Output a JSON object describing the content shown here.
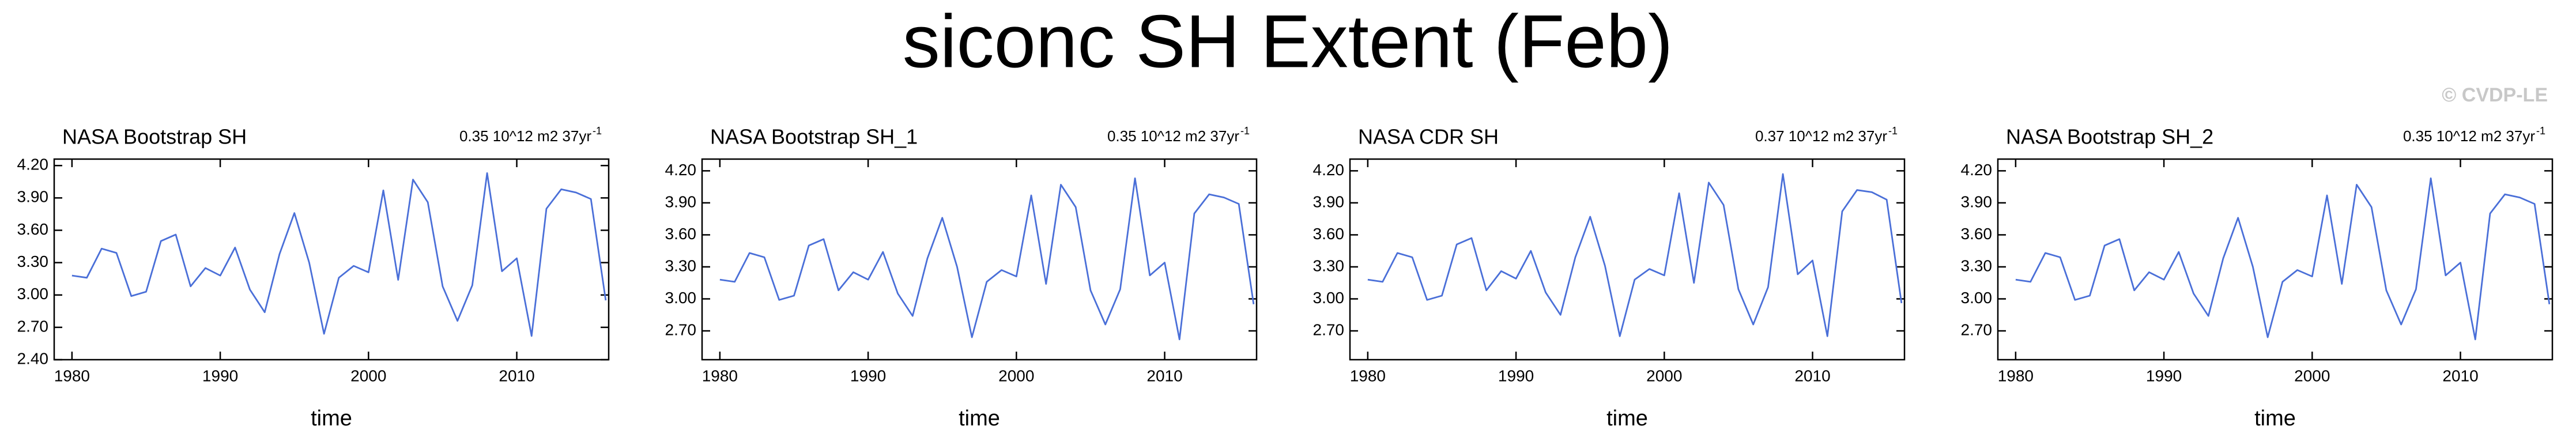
{
  "title": "siconc SH Extent (Feb)",
  "watermark": "© CVDP-LE",
  "chart_data": [
    {
      "type": "line",
      "title": "NASA Bootstrap SH",
      "trend": "0.35 10^12 m2 37yr",
      "trend_exponent": "-1",
      "x_label": "time",
      "x": [
        1980,
        1981,
        1982,
        1983,
        1984,
        1985,
        1986,
        1987,
        1988,
        1989,
        1990,
        1991,
        1992,
        1993,
        1994,
        1995,
        1996,
        1997,
        1998,
        1999,
        2000,
        2001,
        2002,
        2003,
        2004,
        2005,
        2006,
        2007,
        2008,
        2009,
        2010,
        2011,
        2012,
        2013,
        2014,
        2015,
        2016
      ],
      "series": [
        {
          "color": "#4a6fd8",
          "values": [
            3.18,
            3.16,
            3.43,
            3.39,
            2.99,
            3.03,
            3.5,
            3.56,
            3.08,
            3.25,
            3.18,
            3.44,
            3.05,
            2.84,
            3.38,
            3.76,
            3.3,
            2.64,
            3.16,
            3.27,
            3.21,
            3.97,
            3.14,
            4.07,
            3.86,
            3.08,
            2.76,
            3.09,
            4.13,
            3.22,
            3.34,
            2.62,
            3.8,
            3.98,
            3.95,
            3.89,
            2.95
          ]
        }
      ],
      "xlim": [
        1978.8,
        2016.2
      ],
      "xticks": [
        1980,
        1990,
        2000,
        2010
      ],
      "ylim": [
        2.4,
        4.26
      ],
      "yticks": [
        {
          "value": 2.4,
          "label": "2.40"
        },
        {
          "value": 2.7,
          "label": "2.70"
        },
        {
          "value": 3.0,
          "label": "3.00"
        },
        {
          "value": 3.3,
          "label": "3.30"
        },
        {
          "value": 3.6,
          "label": "3.60"
        },
        {
          "value": 3.9,
          "label": "3.90"
        },
        {
          "value": 4.2,
          "label": "4.20"
        }
      ]
    },
    {
      "type": "line",
      "title": "NASA Bootstrap SH_1",
      "trend": "0.35 10^12 m2 37yr",
      "trend_exponent": "-1",
      "x_label": "time",
      "x": [
        1980,
        1981,
        1982,
        1983,
        1984,
        1985,
        1986,
        1987,
        1988,
        1989,
        1990,
        1991,
        1992,
        1993,
        1994,
        1995,
        1996,
        1997,
        1998,
        1999,
        2000,
        2001,
        2002,
        2003,
        2004,
        2005,
        2006,
        2007,
        2008,
        2009,
        2010,
        2011,
        2012,
        2013,
        2014,
        2015,
        2016
      ],
      "series": [
        {
          "color": "#4a6fd8",
          "values": [
            3.18,
            3.16,
            3.43,
            3.39,
            2.99,
            3.03,
            3.5,
            3.56,
            3.08,
            3.25,
            3.18,
            3.44,
            3.05,
            2.84,
            3.38,
            3.76,
            3.3,
            2.64,
            3.16,
            3.27,
            3.21,
            3.97,
            3.14,
            4.07,
            3.86,
            3.08,
            2.76,
            3.09,
            4.13,
            3.22,
            3.34,
            2.62,
            3.8,
            3.98,
            3.95,
            3.89,
            2.95
          ]
        }
      ],
      "xlim": [
        1978.8,
        2016.2
      ],
      "xticks": [
        1980,
        1990,
        2000,
        2010
      ],
      "ylim": [
        2.43,
        4.31
      ],
      "yticks": [
        {
          "value": 2.7,
          "label": "2.70"
        },
        {
          "value": 3.0,
          "label": "3.00"
        },
        {
          "value": 3.3,
          "label": "3.30"
        },
        {
          "value": 3.6,
          "label": "3.60"
        },
        {
          "value": 3.9,
          "label": "3.90"
        },
        {
          "value": 4.2,
          "label": "4.20"
        }
      ]
    },
    {
      "type": "line",
      "title": "NASA CDR SH",
      "trend": "0.37 10^12 m2 37yr",
      "trend_exponent": "-1",
      "x_label": "time",
      "x": [
        1980,
        1981,
        1982,
        1983,
        1984,
        1985,
        1986,
        1987,
        1988,
        1989,
        1990,
        1991,
        1992,
        1993,
        1994,
        1995,
        1996,
        1997,
        1998,
        1999,
        2000,
        2001,
        2002,
        2003,
        2004,
        2005,
        2006,
        2007,
        2008,
        2009,
        2010,
        2011,
        2012,
        2013,
        2014,
        2015,
        2016
      ],
      "series": [
        {
          "color": "#4a6fd8",
          "values": [
            3.18,
            3.16,
            3.43,
            3.39,
            2.99,
            3.03,
            3.51,
            3.57,
            3.08,
            3.26,
            3.19,
            3.45,
            3.06,
            2.85,
            3.39,
            3.77,
            3.31,
            2.65,
            3.18,
            3.28,
            3.22,
            3.99,
            3.15,
            4.09,
            3.88,
            3.09,
            2.76,
            3.11,
            4.17,
            3.23,
            3.36,
            2.65,
            3.82,
            4.02,
            4.0,
            3.93,
            2.96
          ]
        }
      ],
      "xlim": [
        1978.8,
        2016.2
      ],
      "xticks": [
        1980,
        1990,
        2000,
        2010
      ],
      "ylim": [
        2.43,
        4.31
      ],
      "yticks": [
        {
          "value": 2.7,
          "label": "2.70"
        },
        {
          "value": 3.0,
          "label": "3.00"
        },
        {
          "value": 3.3,
          "label": "3.30"
        },
        {
          "value": 3.6,
          "label": "3.60"
        },
        {
          "value": 3.9,
          "label": "3.90"
        },
        {
          "value": 4.2,
          "label": "4.20"
        }
      ]
    },
    {
      "type": "line",
      "title": "NASA Bootstrap SH_2",
      "trend": "0.35 10^12 m2 37yr",
      "trend_exponent": "-1",
      "x_label": "time",
      "x": [
        1980,
        1981,
        1982,
        1983,
        1984,
        1985,
        1986,
        1987,
        1988,
        1989,
        1990,
        1991,
        1992,
        1993,
        1994,
        1995,
        1996,
        1997,
        1998,
        1999,
        2000,
        2001,
        2002,
        2003,
        2004,
        2005,
        2006,
        2007,
        2008,
        2009,
        2010,
        2011,
        2012,
        2013,
        2014,
        2015,
        2016
      ],
      "series": [
        {
          "color": "#4a6fd8",
          "values": [
            3.18,
            3.16,
            3.43,
            3.39,
            2.99,
            3.03,
            3.5,
            3.56,
            3.08,
            3.25,
            3.18,
            3.44,
            3.05,
            2.84,
            3.38,
            3.76,
            3.3,
            2.64,
            3.16,
            3.27,
            3.21,
            3.97,
            3.14,
            4.07,
            3.86,
            3.08,
            2.76,
            3.09,
            4.13,
            3.22,
            3.34,
            2.62,
            3.8,
            3.98,
            3.95,
            3.89,
            2.95
          ]
        }
      ],
      "xlim": [
        1978.8,
        2016.2
      ],
      "xticks": [
        1980,
        1990,
        2000,
        2010
      ],
      "ylim": [
        2.43,
        4.31
      ],
      "yticks": [
        {
          "value": 2.7,
          "label": "2.70"
        },
        {
          "value": 3.0,
          "label": "3.00"
        },
        {
          "value": 3.3,
          "label": "3.30"
        },
        {
          "value": 3.6,
          "label": "3.60"
        },
        {
          "value": 3.9,
          "label": "3.90"
        },
        {
          "value": 4.2,
          "label": "4.20"
        }
      ]
    }
  ]
}
